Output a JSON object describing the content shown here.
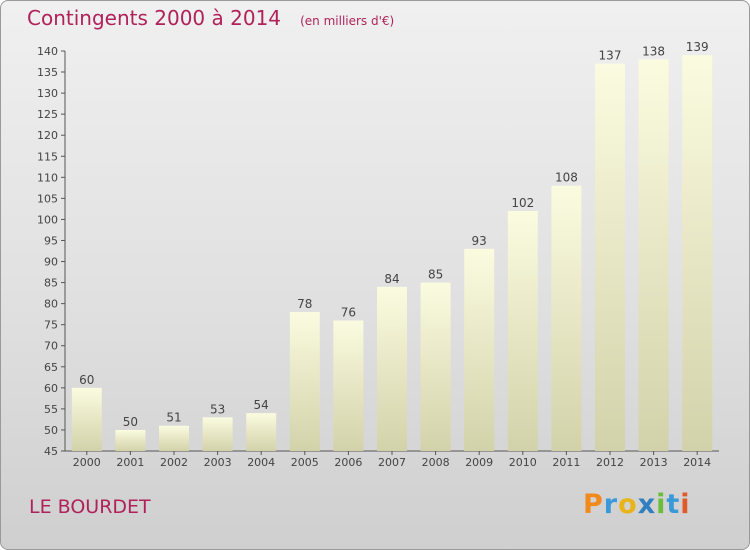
{
  "title": "Contingents 2000 à 2014",
  "unit": "(en milliers d'€)",
  "commune": "LE BOURDET",
  "logo": {
    "letters": [
      "P",
      "r",
      "o",
      "x",
      "i",
      "t",
      "i"
    ],
    "colors": [
      "#f08a1c",
      "#3a9ad9",
      "#e8b41a",
      "#2f7fc1",
      "#6abf3a",
      "#3a9ad9",
      "#e05a2a"
    ]
  },
  "chart_data": {
    "type": "bar",
    "categories": [
      "2000",
      "2001",
      "2002",
      "2003",
      "2004",
      "2005",
      "2006",
      "2007",
      "2008",
      "2009",
      "2010",
      "2011",
      "2012",
      "2013",
      "2014"
    ],
    "values": [
      60,
      50,
      51,
      53,
      54,
      78,
      76,
      84,
      85,
      93,
      102,
      108,
      137,
      138,
      139
    ],
    "title": "Contingents 2000 à 2014",
    "unit": "(en milliers d'€)",
    "xlabel": "",
    "ylabel": "",
    "ylim": [
      45,
      140
    ],
    "yticks": [
      45,
      50,
      55,
      60,
      65,
      70,
      75,
      80,
      85,
      90,
      95,
      100,
      105,
      110,
      115,
      120,
      125,
      130,
      135,
      140
    ],
    "grid": false,
    "bar_color": "#f8f8d2"
  }
}
